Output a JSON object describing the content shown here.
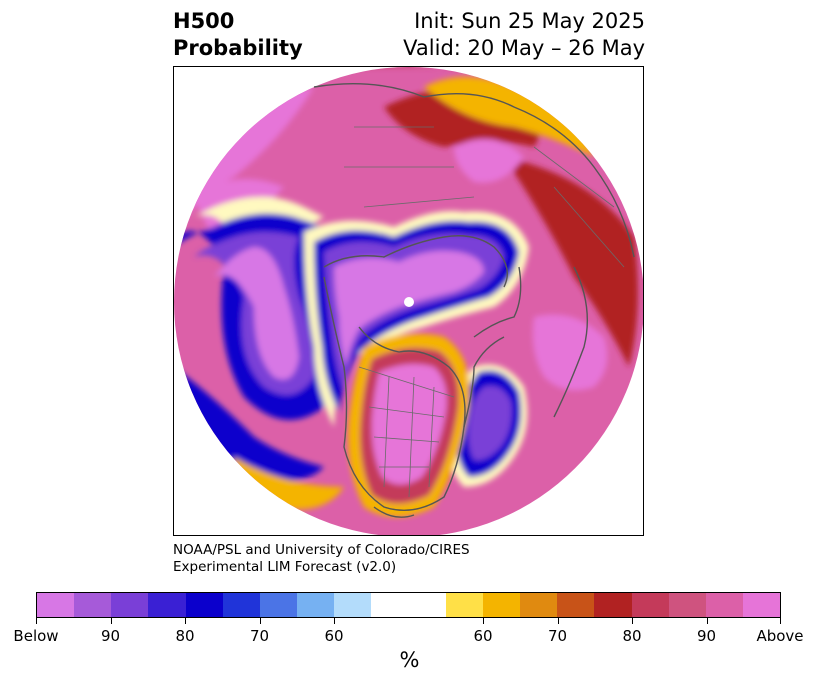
{
  "title": {
    "left": "H500\nProbability",
    "init": "Init: Sun 25 May 2025",
    "valid": "Valid: 20 May – 26 May"
  },
  "credit": {
    "line1": "NOAA/PSL and University of Colorado/CIRES",
    "line2": "Experimental LIM Forecast (v2.0)"
  },
  "colorbar": {
    "colors": [
      "#d777e5",
      "#a65ad9",
      "#7a3fd7",
      "#3a20d4",
      "#0b00cc",
      "#2034d9",
      "#4b74e6",
      "#76b1f2",
      "#b3dcfb",
      "#ffffff",
      "#ffffff",
      "#ffe047",
      "#f4b400",
      "#e08a10",
      "#c85318",
      "#b12222",
      "#c43a5a",
      "#cf537f",
      "#dc60a8",
      "#e674d8"
    ],
    "tick_labels": [
      "Below",
      "90",
      "80",
      "70",
      "60",
      "60",
      "70",
      "80",
      "90",
      "Above"
    ],
    "unit": "%"
  },
  "map": {
    "projection": "north polar stereographic",
    "coastline_color": "#555555",
    "region_colors": {
      "above_strong": "#e674d8",
      "above_mid": "#dc60a8",
      "above_red": "#b12222",
      "above_orange": "#e08a10",
      "above_yellow": "#f4b400",
      "below_strong": "#d777e5",
      "below_purple": "#7a3fd7",
      "below_blue": "#0b00cc",
      "below_light": "#76b1f2"
    }
  }
}
